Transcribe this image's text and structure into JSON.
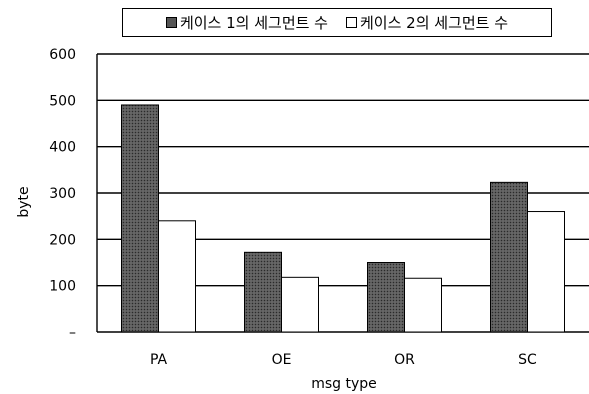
{
  "chart_data": {
    "type": "bar",
    "categories": [
      "PA",
      "OE",
      "OR",
      "SC"
    ],
    "series": [
      {
        "name": "케이스 1의 세그먼트 수",
        "values": [
          490,
          172,
          150,
          323
        ],
        "color": "#555555"
      },
      {
        "name": "케이스 2의 세그먼트 수",
        "values": [
          240,
          118,
          116,
          260
        ],
        "color": "#ffffff"
      }
    ],
    "title": "",
    "xlabel": "msg type",
    "ylabel": "byte",
    "ylim": [
      0,
      600
    ],
    "yticks": [
      "–",
      "100",
      "200",
      "300",
      "400",
      "500",
      "600"
    ],
    "grid": true,
    "legend_position": "top"
  }
}
